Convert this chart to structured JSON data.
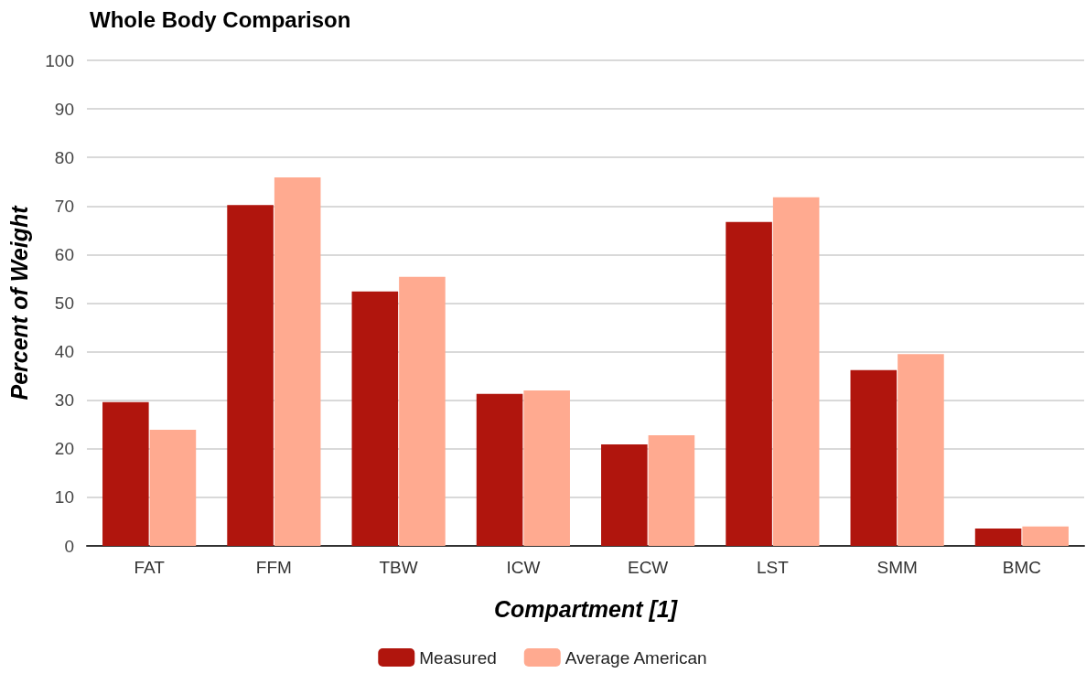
{
  "chart_data": {
    "type": "bar",
    "title": "Whole Body Comparison",
    "xlabel": "Compartment [1]",
    "ylabel": "Percent of Weight",
    "categories": [
      "FAT",
      "FFM",
      "TBW",
      "ICW",
      "ECW",
      "LST",
      "SMM",
      "BMC"
    ],
    "series": [
      {
        "name": "Measured",
        "color": "#b0150d",
        "values": [
          29.6,
          70.2,
          52.4,
          31.3,
          20.9,
          66.7,
          36.2,
          3.6
        ]
      },
      {
        "name": "Average American",
        "color": "#ffaa90",
        "values": [
          23.9,
          75.9,
          55.4,
          32.0,
          22.8,
          71.8,
          39.5,
          4.0
        ]
      }
    ],
    "ylim": [
      0,
      100
    ],
    "yticks": [
      0,
      10,
      20,
      30,
      40,
      50,
      60,
      70,
      80,
      90,
      100
    ],
    "grid": "y",
    "legend": "bottom"
  }
}
